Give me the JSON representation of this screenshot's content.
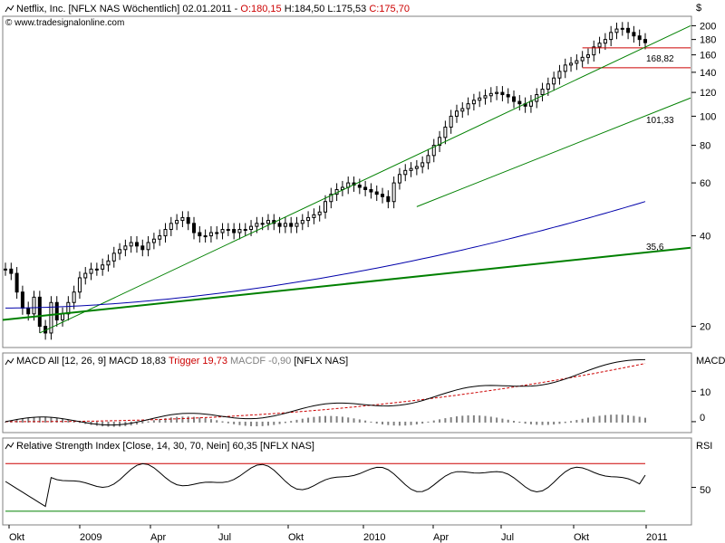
{
  "header": {
    "icon": "chart-line-icon",
    "title_prefix": "Netflix, Inc. [NFLX NAS  Wöchentlich] 02.01.2011 - ",
    "open": "O:180,15",
    "rest": " H:184,50 L:175,53 ",
    "close": "C:175,70",
    "watermark": "© www.tradesignalonline.com"
  },
  "colors": {
    "price_line": "#cc0000",
    "trend": "#008000",
    "ma_blue": "#0000aa",
    "macd": "#000000",
    "trigger": "#cc0000",
    "macdf": "#808080",
    "rsi": "#000000",
    "rsi_upper": "#cc0000",
    "rsi_lower": "#008000"
  },
  "price_axis": {
    "currency": "$",
    "ticks": [
      "200",
      "180",
      "160",
      "140",
      "120",
      "100",
      "80",
      "60",
      "40",
      "20"
    ],
    "tick_values": [
      200,
      180,
      160,
      140,
      120,
      100,
      80,
      60,
      40,
      20
    ],
    "scale": "log"
  },
  "annotations": {
    "level_1": "168,82",
    "level_2": "101,33",
    "level_3": "35,6"
  },
  "macd_panel": {
    "icon": "chart-line-icon",
    "label": "MACD All [12, 26, 9] MACD 18,83 ",
    "trigger": "Trigger 19,73 ",
    "macdf": "MACDF -0,90",
    "symbol": " [NFLX NAS]",
    "axis_title": "MACD",
    "ticks": [
      "10",
      "0"
    ]
  },
  "rsi_panel": {
    "icon": "chart-line-icon",
    "label": "Relative Strength Index [Close, 14, 30, 70, Nein] 60,35 [NFLX NAS]",
    "axis_title": "RSI",
    "ticks": [
      "50"
    ],
    "upper_level": 70,
    "lower_level": 30
  },
  "time_axis": [
    "Okt",
    "2009",
    "Apr",
    "Jul",
    "Okt",
    "2010",
    "Apr",
    "Jul",
    "Okt",
    "2011"
  ],
  "chart_data": {
    "type": "candlestick",
    "title": "Netflix, Inc. [NFLX NAS  Wöchentlich] 02.01.2011",
    "y_scale": "log",
    "ylim": [
      17,
      215
    ],
    "x_categories": [
      "Okt",
      "2009",
      "Apr",
      "Jul",
      "Okt",
      "2010",
      "Apr",
      "Jul",
      "Okt",
      "2011"
    ],
    "ohlc_last": {
      "open": 180.15,
      "high": 184.5,
      "low": 175.53,
      "close": 175.7
    },
    "closes_weekly": [
      31,
      30,
      26,
      23,
      22,
      25,
      20,
      19,
      24,
      21,
      22,
      24,
      26,
      29,
      30,
      31,
      31,
      32,
      33,
      35,
      36,
      37,
      38,
      37,
      36,
      38,
      39,
      40,
      42,
      44,
      45,
      46,
      44,
      41,
      40,
      40,
      41,
      41,
      42,
      42,
      41,
      42,
      42,
      43,
      44,
      44,
      45,
      44,
      43,
      44,
      43,
      44,
      45,
      46,
      47,
      48,
      52,
      55,
      57,
      58,
      60,
      59,
      58,
      57,
      56,
      55,
      54,
      52,
      60,
      64,
      66,
      67,
      68,
      70,
      74,
      80,
      85,
      92,
      100,
      104,
      106,
      110,
      113,
      115,
      117,
      119,
      120,
      118,
      116,
      112,
      110,
      108,
      112,
      118,
      123,
      128,
      134,
      141,
      148,
      150,
      153,
      157,
      160,
      170,
      175,
      180,
      190,
      195,
      196,
      190,
      185,
      180,
      175.7
    ],
    "price_levels": [
      168.82,
      101.33,
      35.6
    ],
    "moving_average_end": 52,
    "macd": {
      "macd": 18.83,
      "trigger": 19.73,
      "macdf": -0.9,
      "params": [
        12,
        26,
        9
      ],
      "ylim": [
        -3,
        22
      ]
    },
    "rsi": {
      "value": 60.35,
      "period": 14,
      "levels": [
        30,
        70
      ],
      "ylim": [
        20,
        90
      ]
    }
  }
}
